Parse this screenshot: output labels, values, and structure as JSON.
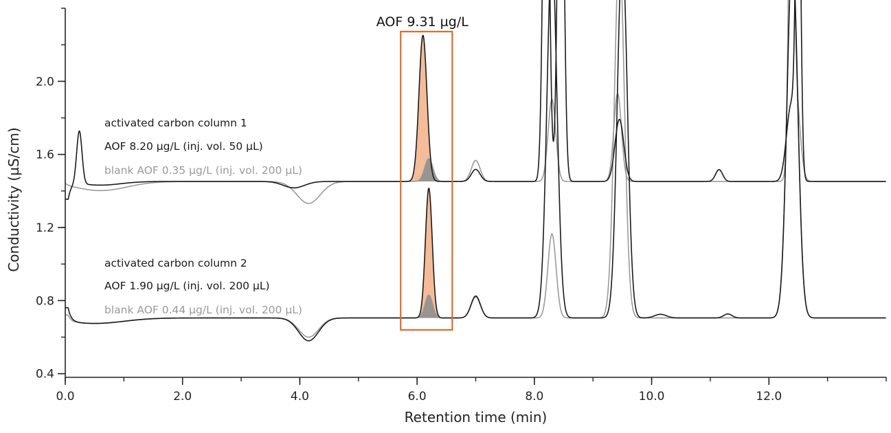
{
  "chart_data": {
    "type": "line",
    "xlabel": "Retention time (min)",
    "ylabel": "Conductivity (µS/cm)",
    "xlim": [
      0,
      14
    ],
    "ylim": [
      0.38,
      2.4
    ],
    "x_ticks": [
      0,
      2,
      4,
      6,
      8,
      10,
      12
    ],
    "x_tick_labels": [
      "0.0",
      "2.0",
      "4.0",
      "6.0",
      "8.0",
      "10.0",
      "12.0"
    ],
    "x_minor_step": 1,
    "y_ticks": [
      0.4,
      0.8,
      1.2,
      1.6,
      2.0
    ],
    "y_tick_labels": [
      "0.4",
      "0.8",
      "1.2",
      "1.6",
      "2.0"
    ],
    "y_minor_step": 0.2,
    "grid": false,
    "highlight_window": {
      "x_range": [
        5.72,
        6.6
      ],
      "color": "#e06a28"
    },
    "annotation": "AOF 9.31 µg/L",
    "colors": {
      "dark": "#1a1a1a",
      "gray": "#9a9a9a",
      "peak_fill": "#f3b894",
      "blank_fill": "#8f8f8f"
    },
    "legend_groups": [
      {
        "title": "activated carbon column 1",
        "sample": "AOF 8.20 µg/L (inj. vol. 50 µL)",
        "blank": "blank AOF 0.35 µg/L (inj. vol. 200 µL)"
      },
      {
        "title": "activated carbon column 2",
        "sample": "AOF 1.90 µg/L (inj. vol. 200 µL)",
        "blank": "blank AOF 0.44 µg/L (inj. vol. 200 µL)"
      }
    ],
    "series": [
      {
        "role": "sample",
        "group": 1,
        "color": "#1a1a1a",
        "baseline": 1.452,
        "window_peak_index": 1,
        "features": [
          [
            0.05,
            1.36,
            0.05,
            "l"
          ],
          [
            0.24,
            0.29,
            0.045,
            "g"
          ],
          [
            0.6,
            -0.02,
            0.35,
            "g"
          ],
          [
            3.9,
            -0.035,
            0.18,
            "g"
          ],
          [
            6.1,
            0.8,
            0.068,
            "g"
          ],
          [
            7.0,
            0.066,
            0.075,
            "g"
          ],
          [
            8.2,
            2.5,
            0.05,
            "g"
          ],
          [
            8.45,
            2.5,
            0.05,
            "g"
          ],
          [
            9.45,
            0.34,
            0.075,
            "g"
          ],
          [
            11.15,
            0.065,
            0.06,
            "g"
          ],
          [
            12.38,
            0.42,
            0.08,
            "g"
          ],
          [
            12.5,
            2.0,
            0.04,
            "g"
          ]
        ]
      },
      {
        "role": "blank",
        "group": 1,
        "color": "#9a9a9a",
        "baseline": 1.452,
        "window_peak_index": 1,
        "features": [
          [
            0.02,
            1.46,
            0.04,
            "l"
          ],
          [
            0.6,
            -0.05,
            0.45,
            "g"
          ],
          [
            4.15,
            -0.12,
            0.2,
            "g"
          ],
          [
            6.2,
            0.125,
            0.07,
            "g"
          ],
          [
            7.0,
            0.115,
            0.075,
            "g"
          ],
          [
            8.3,
            0.45,
            0.065,
            "g"
          ],
          [
            9.42,
            0.48,
            0.065,
            "g"
          ],
          [
            12.45,
            0.51,
            0.075,
            "g"
          ],
          [
            12.38,
            2.0,
            0.04,
            "g"
          ]
        ]
      },
      {
        "role": "sample",
        "group": 2,
        "color": "#1a1a1a",
        "baseline": 0.705,
        "window_peak_index": 1,
        "features": [
          [
            0.05,
            0.78,
            0.05,
            "l"
          ],
          [
            0.5,
            -0.03,
            0.5,
            "g"
          ],
          [
            4.15,
            -0.125,
            0.17,
            "g"
          ],
          [
            6.2,
            0.71,
            0.058,
            "g"
          ],
          [
            7.0,
            0.12,
            0.08,
            "g"
          ],
          [
            8.3,
            2.0,
            0.085,
            "g"
          ],
          [
            9.5,
            2.0,
            0.085,
            "g"
          ],
          [
            10.15,
            0.02,
            0.1,
            "g"
          ],
          [
            11.3,
            0.022,
            0.07,
            "g"
          ],
          [
            12.4,
            2.0,
            0.09,
            "g"
          ]
        ]
      },
      {
        "role": "blank",
        "group": 2,
        "color": "#9a9a9a",
        "baseline": 0.705,
        "window_peak_index": 1,
        "features": [
          [
            0.05,
            0.74,
            0.05,
            "l"
          ],
          [
            0.5,
            -0.03,
            0.5,
            "g"
          ],
          [
            4.15,
            -0.105,
            0.17,
            "g"
          ],
          [
            6.2,
            0.125,
            0.065,
            "g"
          ],
          [
            7.0,
            0.115,
            0.08,
            "g"
          ],
          [
            8.3,
            0.46,
            0.07,
            "g"
          ],
          [
            9.45,
            2.0,
            0.085,
            "g"
          ],
          [
            12.4,
            2.0,
            0.09,
            "g"
          ]
        ]
      }
    ]
  }
}
